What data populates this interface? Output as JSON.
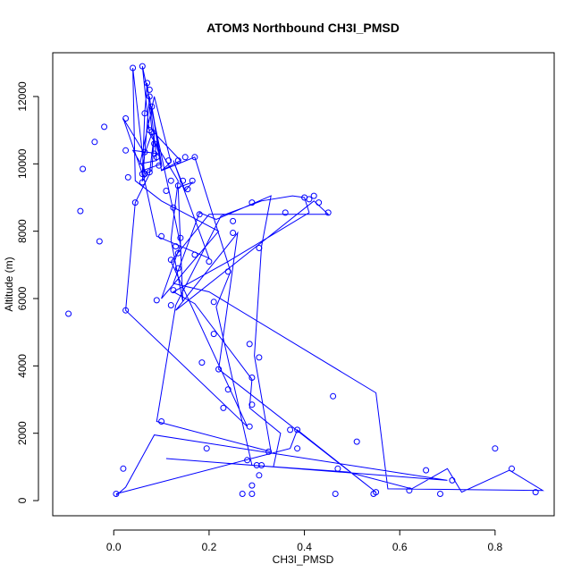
{
  "chart_data": {
    "type": "line",
    "title": "ATOM3 Northbound CH3I_PMSD",
    "xlabel": "CH3I_PMSD",
    "ylabel": "Altitude (m)",
    "xlim": [
      -0.128,
      0.924
    ],
    "ylim": [
      -450,
      13300
    ],
    "xticks": [
      0.0,
      0.2,
      0.4,
      0.6,
      0.8
    ],
    "xtick_labels": [
      "0.0",
      "0.2",
      "0.4",
      "0.6",
      "0.8"
    ],
    "yticks": [
      0,
      2000,
      4000,
      6000,
      8000,
      10000,
      12000
    ],
    "ytick_labels": [
      "0",
      "2000",
      "4000",
      "6000",
      "8000",
      "10000",
      "12000"
    ],
    "grid": false,
    "legend": "none",
    "series_color": "#0000ff",
    "series": [
      {
        "marker": "open-circle",
        "points": [
          [
            0.005,
            200
          ],
          [
            0.37,
            1550
          ],
          [
            0.385,
            2100
          ],
          [
            0.55,
            250
          ],
          [
            0.22,
            3900
          ],
          [
            0.26,
            7950
          ],
          [
            0.13,
            5650
          ],
          [
            0.42,
            8900
          ],
          [
            0.45,
            8500
          ],
          [
            0.2,
            8500
          ],
          [
            0.12,
            7100
          ],
          [
            0.28,
            2200
          ],
          [
            0.025,
            5650
          ],
          [
            0.045,
            8850
          ],
          [
            0.075,
            9700
          ],
          [
            0.085,
            10900
          ],
          [
            0.08,
            9800
          ],
          [
            0.065,
            9700
          ],
          [
            0.04,
            12850
          ],
          [
            0.045,
            9500
          ],
          [
            0.1,
            8900
          ],
          [
            0.22,
            8000
          ],
          [
            0.1,
            6000
          ],
          [
            0.14,
            7600
          ],
          [
            0.06,
            12900
          ],
          [
            0.075,
            10900
          ],
          [
            0.135,
            9500
          ],
          [
            0.12,
            7750
          ],
          [
            0.145,
            5900
          ],
          [
            0.135,
            9300
          ],
          [
            0.165,
            9450
          ],
          [
            0.15,
            9200
          ],
          [
            0.125,
            10100
          ],
          [
            0.2,
            7200
          ],
          [
            0.09,
            7850
          ],
          [
            0.06,
            9800
          ],
          [
            0.1,
            10000
          ],
          [
            0.08,
            11700
          ],
          [
            0.1,
            9800
          ],
          [
            0.14,
            10100
          ],
          [
            0.08,
            11000
          ],
          [
            0.07,
            12400
          ],
          [
            0.065,
            11500
          ],
          [
            0.06,
            9700
          ],
          [
            0.02,
            11350
          ],
          [
            0.065,
            10300
          ],
          [
            0.08,
            10900
          ],
          [
            0.095,
            10300
          ],
          [
            0.04,
            10400
          ],
          [
            0.07,
            9700
          ],
          [
            0.06,
            9500
          ],
          [
            0.075,
            12000
          ],
          [
            0.09,
            10100
          ],
          [
            0.055,
            10000
          ],
          [
            0.085,
            12000
          ],
          [
            0.12,
            10050
          ],
          [
            0.1,
            9800
          ],
          [
            0.17,
            10200
          ],
          [
            0.245,
            6800
          ],
          [
            0.215,
            5750
          ],
          [
            0.29,
            1050
          ],
          [
            0.49,
            850
          ],
          [
            0.625,
            350
          ],
          [
            0.7,
            950
          ],
          [
            0.73,
            250
          ],
          [
            0.83,
            900
          ],
          [
            0.9,
            300
          ],
          [
            0.575,
            350
          ],
          [
            0.55,
            3200
          ],
          [
            0.2,
            6200
          ],
          [
            0.125,
            6450
          ],
          [
            0.18,
            8550
          ],
          [
            0.215,
            8350
          ],
          [
            0.33,
            9050
          ],
          [
            0.31,
            7550
          ],
          [
            0.295,
            4300
          ],
          [
            0.33,
            1450
          ],
          [
            0.09,
            2350
          ],
          [
            0.13,
            5800
          ],
          [
            0.225,
            8450
          ],
          [
            0.31,
            8900
          ],
          [
            0.375,
            9050
          ],
          [
            0.4,
            9000
          ],
          [
            0.41,
            8550
          ],
          [
            0.24,
            7100
          ],
          [
            0.125,
            6200
          ],
          [
            0.17,
            5850
          ],
          [
            0.29,
            3600
          ],
          [
            0.285,
            2750
          ],
          [
            0.35,
            2000
          ],
          [
            0.335,
            1000
          ],
          [
            0.11,
            1250
          ],
          [
            0.7,
            600
          ],
          [
            0.085,
            1950
          ],
          [
            0.025,
            400
          ],
          [
            0.005,
            150
          ]
        ]
      }
    ],
    "markers": [
      [
        0.04,
        12850
      ],
      [
        0.06,
        12900
      ],
      [
        0.07,
        12400
      ],
      [
        0.075,
        12200
      ],
      [
        0.075,
        12000
      ],
      [
        0.08,
        11700
      ],
      [
        0.065,
        11500
      ],
      [
        0.025,
        11350
      ],
      [
        -0.02,
        11100
      ],
      [
        0.075,
        11000
      ],
      [
        0.08,
        10950
      ],
      [
        -0.04,
        10650
      ],
      [
        0.085,
        10600
      ],
      [
        0.025,
        10400
      ],
      [
        0.065,
        10350
      ],
      [
        0.085,
        10300
      ],
      [
        0.09,
        10200
      ],
      [
        0.15,
        10200
      ],
      [
        0.17,
        10200
      ],
      [
        0.115,
        10100
      ],
      [
        0.135,
        10100
      ],
      [
        0.095,
        9950
      ],
      [
        -0.065,
        9850
      ],
      [
        0.075,
        9750
      ],
      [
        0.06,
        9700
      ],
      [
        0.065,
        9700
      ],
      [
        0.03,
        9600
      ],
      [
        0.12,
        9500
      ],
      [
        0.145,
        9500
      ],
      [
        0.165,
        9500
      ],
      [
        0.06,
        9450
      ],
      [
        0.135,
        9350
      ],
      [
        0.155,
        9250
      ],
      [
        0.11,
        9200
      ],
      [
        0.42,
        9050
      ],
      [
        0.4,
        9000
      ],
      [
        0.41,
        8950
      ],
      [
        0.43,
        8850
      ],
      [
        0.29,
        8850
      ],
      [
        0.045,
        8850
      ],
      [
        0.125,
        8700
      ],
      [
        0.18,
        8500
      ],
      [
        0.36,
        8550
      ],
      [
        0.45,
        8550
      ],
      [
        -0.07,
        8600
      ],
      [
        0.25,
        8300
      ],
      [
        0.25,
        7950
      ],
      [
        0.1,
        7850
      ],
      [
        -0.03,
        7700
      ],
      [
        0.14,
        7800
      ],
      [
        0.13,
        7550
      ],
      [
        0.305,
        7500
      ],
      [
        0.135,
        7350
      ],
      [
        0.17,
        7300
      ],
      [
        0.12,
        7150
      ],
      [
        0.2,
        7100
      ],
      [
        0.135,
        6900
      ],
      [
        0.24,
        6800
      ],
      [
        0.125,
        6250
      ],
      [
        0.09,
        5950
      ],
      [
        0.21,
        5900
      ],
      [
        0.12,
        5800
      ],
      [
        0.025,
        5650
      ],
      [
        -0.095,
        5550
      ],
      [
        0.21,
        4950
      ],
      [
        0.285,
        4650
      ],
      [
        0.185,
        4100
      ],
      [
        0.305,
        4250
      ],
      [
        0.22,
        3900
      ],
      [
        0.29,
        3650
      ],
      [
        0.46,
        3100
      ],
      [
        0.24,
        3300
      ],
      [
        0.29,
        2850
      ],
      [
        0.23,
        2750
      ],
      [
        0.1,
        2350
      ],
      [
        0.285,
        2200
      ],
      [
        0.37,
        2100
      ],
      [
        0.385,
        2100
      ],
      [
        0.51,
        1750
      ],
      [
        0.8,
        1550
      ],
      [
        0.195,
        1550
      ],
      [
        0.385,
        1550
      ],
      [
        0.325,
        1450
      ],
      [
        0.28,
        1200
      ],
      [
        0.3,
        1050
      ],
      [
        0.31,
        1050
      ],
      [
        0.47,
        950
      ],
      [
        0.655,
        900
      ],
      [
        0.835,
        950
      ],
      [
        0.02,
        950
      ],
      [
        0.305,
        750
      ],
      [
        0.71,
        600
      ],
      [
        0.29,
        450
      ],
      [
        0.62,
        300
      ],
      [
        0.885,
        250
      ],
      [
        0.465,
        200
      ],
      [
        0.55,
        250
      ],
      [
        0.545,
        200
      ],
      [
        0.685,
        200
      ],
      [
        0.27,
        200
      ],
      [
        0.29,
        200
      ],
      [
        0.005,
        200
      ]
    ]
  }
}
